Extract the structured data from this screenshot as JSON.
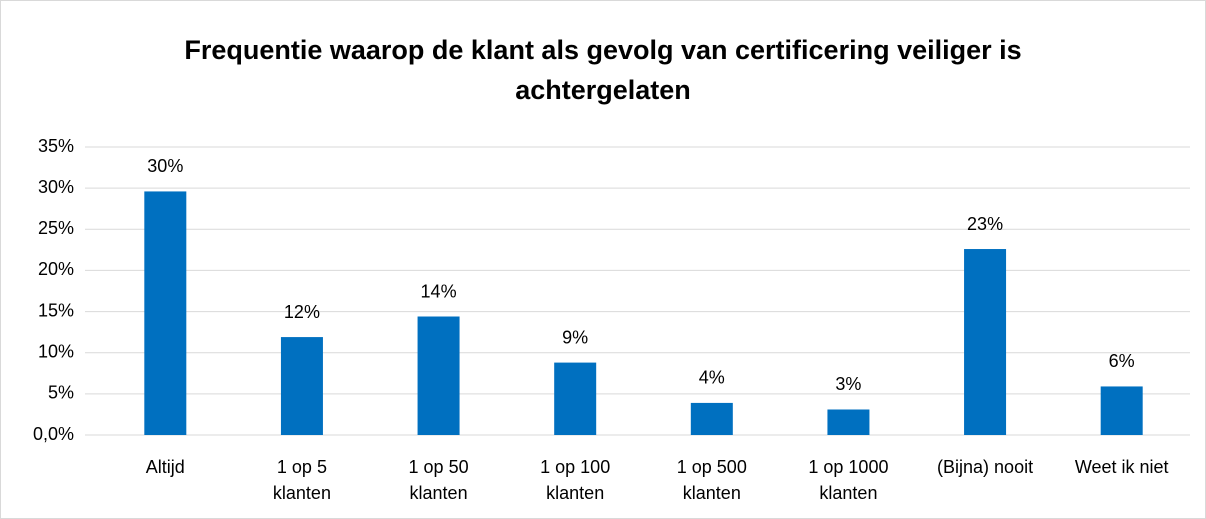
{
  "chart_data": {
    "type": "bar",
    "title": "Frequentie waarop de klant als gevolg van certificering veiliger is achtergelaten",
    "categories": [
      "Altijd",
      "1 op 5\nklanten",
      "1 op 50\nklanten",
      "1 op 100\nklanten",
      "1 op 500\nklanten",
      "1 op 1000\nklanten",
      "(Bijna) nooit",
      "Weet ik niet"
    ],
    "values": [
      29.6,
      11.9,
      14.4,
      8.8,
      3.9,
      3.1,
      22.6,
      5.9
    ],
    "value_labels": [
      "30%",
      "12%",
      "14%",
      "9%",
      "4%",
      "3%",
      "23%",
      "6%"
    ],
    "color": "#0070c0",
    "ylim": [
      0,
      35
    ],
    "yticks": [
      {
        "value": 0,
        "label": "0,0%"
      },
      {
        "value": 5,
        "label": "5%"
      },
      {
        "value": 10,
        "label": "10%"
      },
      {
        "value": 15,
        "label": "15%"
      },
      {
        "value": 20,
        "label": "20%"
      },
      {
        "value": 25,
        "label": "25%"
      },
      {
        "value": 30,
        "label": "30%"
      },
      {
        "value": 35,
        "label": "35%"
      }
    ],
    "grid": true
  }
}
